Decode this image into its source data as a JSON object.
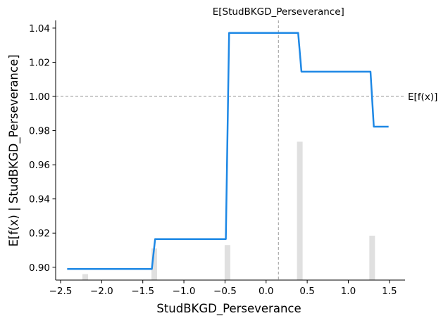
{
  "chart_data": {
    "type": "line",
    "xlabel": "StudBKGD_Perseverance",
    "ylabel": "E[f(x) | StudBKGD_Perseverance]",
    "xlim": [
      -2.56,
      1.69
    ],
    "ylim": [
      0.8925,
      1.0445
    ],
    "x_ticks": [
      -2.5,
      -2.0,
      -1.5,
      -1.0,
      -0.5,
      0.0,
      0.5,
      1.0,
      1.5
    ],
    "x_tick_labels": [
      "−2.5",
      "−2.0",
      "−1.5",
      "−1.0",
      "−0.5",
      "0.0",
      "0.5",
      "1.0",
      "1.5"
    ],
    "y_ticks": [
      0.9,
      0.92,
      0.94,
      0.96,
      0.98,
      1.0,
      1.02,
      1.04
    ],
    "y_tick_labels": [
      "0.90",
      "0.92",
      "0.94",
      "0.96",
      "0.98",
      "1.00",
      "1.02",
      "1.04"
    ],
    "grid": false,
    "line_color": "#1E88E5",
    "hist_color": "#e0e0e0",
    "guide_color": "#999999",
    "series": [
      {
        "x": [
          -2.42,
          -1.39,
          -1.35,
          -0.49,
          -0.45,
          0.39,
          0.43,
          1.27,
          1.31,
          1.49
        ],
        "values": [
          0.899,
          0.899,
          0.9165,
          0.9165,
          1.0372,
          1.0372,
          1.0145,
          1.0145,
          0.9823,
          0.9823
        ]
      }
    ],
    "histogram": {
      "x": [
        -2.2,
        -1.36,
        -0.47,
        0.41,
        1.29
      ],
      "heights": [
        0.0035,
        0.0185,
        0.0205,
        0.081,
        0.026
      ]
    },
    "reference_lines": {
      "expected_feature_value": 0.15,
      "expected_feature_label": "E[StudBKGD_Perseverance]",
      "expected_output_value": 1.0,
      "expected_output_label": "E[f(x)]"
    }
  }
}
